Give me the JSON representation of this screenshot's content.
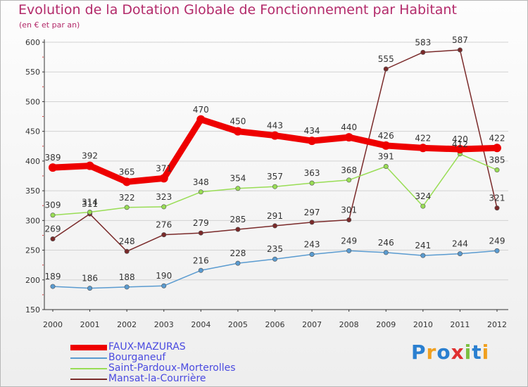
{
  "title": "Evolution de la Dotation Globale de Fonctionnement par Habitant",
  "subtitle": "(en € et par an)",
  "logo_text": "Proxiti",
  "chart_data": {
    "type": "line",
    "title": "Evolution de la Dotation Globale de Fonctionnement par Habitant",
    "subtitle": "(en € et par an)",
    "xlabel": "",
    "ylabel": "",
    "ylim": [
      150,
      600
    ],
    "yticks": [
      150,
      200,
      250,
      300,
      350,
      400,
      450,
      500,
      550,
      600
    ],
    "categories": [
      "2000",
      "2001",
      "2002",
      "2003",
      "2004",
      "2005",
      "2006",
      "2007",
      "2008",
      "2009",
      "2010",
      "2011",
      "2012"
    ],
    "legend_position": "bottom-left",
    "series": [
      {
        "name": "FAUX-MAZURAS",
        "color": "#ee0000",
        "values": [
          389,
          392,
          365,
          371,
          470,
          450,
          443,
          434,
          440,
          426,
          422,
          420,
          422
        ]
      },
      {
        "name": "Bourganeuf",
        "color": "#5a9bd0",
        "values": [
          189,
          186,
          188,
          190,
          216,
          228,
          235,
          243,
          249,
          246,
          241,
          244,
          249
        ]
      },
      {
        "name": "Saint-Pardoux-Morterolles",
        "color": "#99dd55",
        "values": [
          309,
          314,
          322,
          323,
          348,
          354,
          357,
          363,
          368,
          391,
          324,
          412,
          385
        ]
      },
      {
        "name": "Mansat-la-Courrière",
        "color": "#7a2a2a",
        "values": [
          269,
          311,
          248,
          276,
          279,
          285,
          291,
          297,
          301,
          555,
          583,
          587,
          321
        ]
      }
    ]
  }
}
